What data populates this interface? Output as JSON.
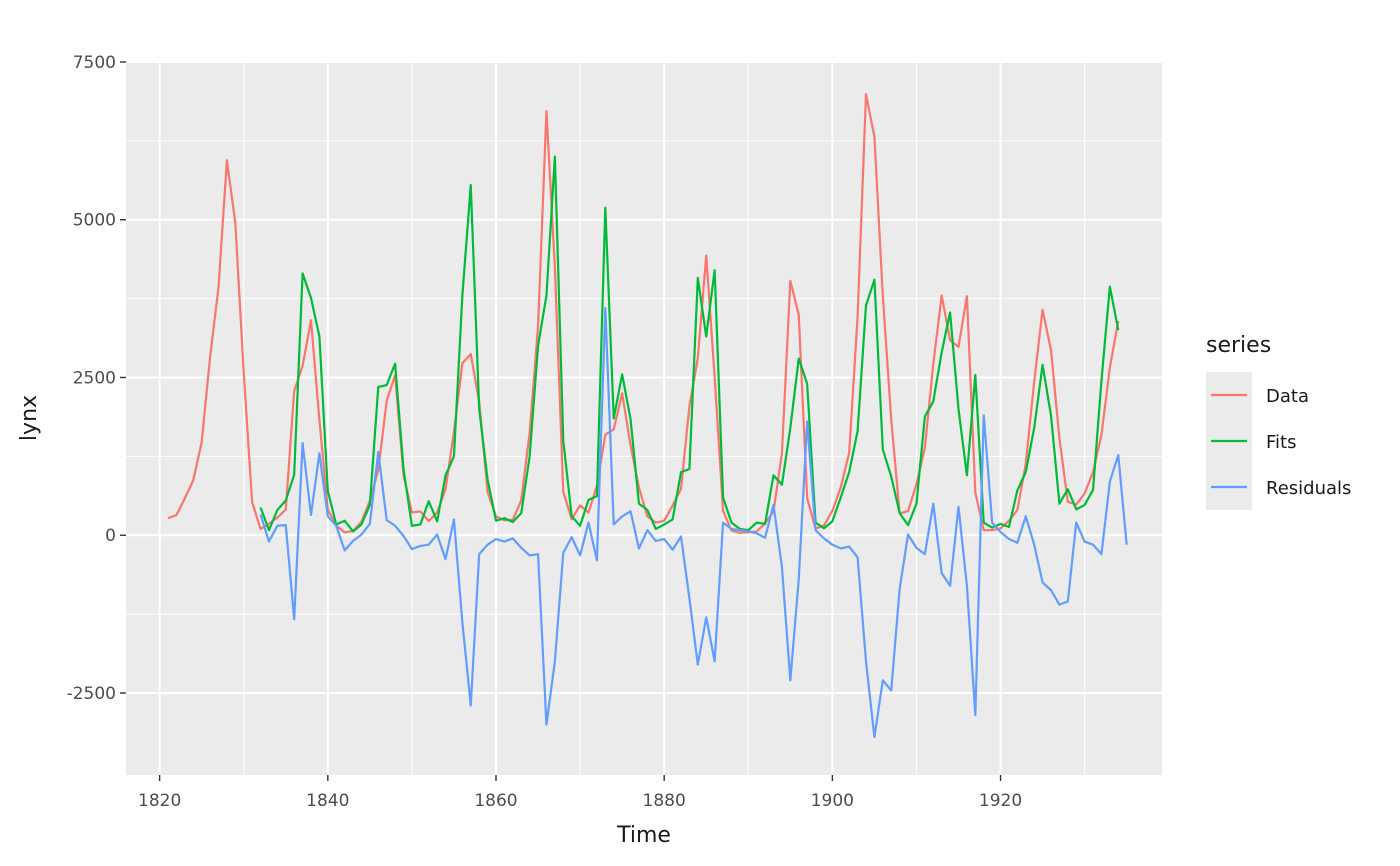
{
  "chart_data": {
    "type": "line",
    "title": "",
    "xlabel": "Time",
    "ylabel": "lynx",
    "xlim": [
      1816,
      1939.2
    ],
    "ylim": [
      -3800,
      7500
    ],
    "x_ticks": [
      1820,
      1840,
      1860,
      1880,
      1900,
      1920
    ],
    "y_ticks": [
      -2500,
      0,
      2500,
      5000,
      7500
    ],
    "grid": true,
    "legend": {
      "title": "series",
      "position": "right"
    },
    "colors": {
      "panel": "#ebebeb",
      "grid": "#ffffff",
      "Data": "#f8766d",
      "Fits": "#00ba38",
      "Residuals": "#619cff"
    },
    "series": [
      {
        "name": "Data",
        "start": 1821,
        "values": [
          269,
          321,
          585,
          871,
          1475,
          2821,
          3928,
          5943,
          4950,
          2577,
          523,
          98,
          184,
          279,
          409,
          2285,
          2685,
          3409,
          1824,
          409,
          151,
          45,
          68,
          213,
          546,
          1033,
          2129,
          2536,
          957,
          361,
          377,
          225,
          360,
          731,
          1638,
          2725,
          2871,
          2119,
          684,
          299,
          236,
          245,
          552,
          1623,
          3311,
          6721,
          4254,
          687,
          255,
          473,
          358,
          784,
          1594,
          1676,
          2251,
          1426,
          756,
          299,
          201,
          229,
          469,
          736,
          2042,
          2811,
          4431,
          2511,
          389,
          73,
          39,
          49,
          59,
          188,
          377,
          1292,
          4031,
          3495,
          587,
          105,
          153,
          387,
          758,
          1307,
          3465,
          6991,
          6313,
          3794,
          1836,
          345,
          382,
          808,
          1388,
          2713,
          3800,
          3091,
          2985,
          3790,
          674,
          81,
          80,
          108,
          229,
          399,
          1132,
          2432,
          3574,
          2935,
          1537,
          529,
          485,
          662,
          1000,
          1590,
          2657,
          3396
        ]
      },
      {
        "name": "Fits",
        "start": 1832,
        "values": [
          440,
          80,
          400,
          550,
          960,
          4150,
          3760,
          3150,
          700,
          170,
          230,
          60,
          170,
          480,
          2350,
          2380,
          2720,
          1050,
          150,
          170,
          540,
          220,
          950,
          1250,
          3800,
          5550,
          2000,
          880,
          230,
          270,
          210,
          350,
          1250,
          3000,
          3800,
          6000,
          1500,
          300,
          150,
          560,
          620,
          5190,
          1850,
          2550,
          1840,
          500,
          400,
          100,
          170,
          250,
          1000,
          1050,
          4080,
          3150,
          4200,
          600,
          200,
          100,
          80,
          200,
          180,
          950,
          800,
          1700,
          2800,
          2400,
          200,
          110,
          220,
          600,
          1000,
          1650,
          3640,
          4050,
          1360,
          930,
          350,
          160,
          500,
          1880,
          2120,
          2900,
          3530,
          2000,
          950,
          2540,
          200,
          120,
          180,
          130,
          710,
          1000,
          1700,
          2700,
          1900,
          500,
          730,
          410,
          480,
          720,
          2450,
          3940,
          3250
        ]
      },
      {
        "name": "Residuals",
        "start": 1832,
        "values": [
          330,
          -100,
          150,
          160,
          -1330,
          1460,
          320,
          1300,
          300,
          150,
          -240,
          -90,
          10,
          180,
          1320,
          240,
          150,
          -10,
          -220,
          -170,
          -150,
          10,
          -380,
          250,
          -1380,
          -2700,
          -300,
          -150,
          -60,
          -100,
          -50,
          -200,
          -320,
          -300,
          -3000,
          -2000,
          -280,
          -30,
          -320,
          200,
          -400,
          3600,
          170,
          300,
          380,
          -210,
          80,
          -90,
          -60,
          -230,
          -20,
          -1000,
          -2050,
          -1300,
          -2000,
          200,
          100,
          80,
          60,
          30,
          -40,
          480,
          -500,
          -2300,
          -700,
          1800,
          80,
          -50,
          -150,
          -210,
          -180,
          -350,
          -2000,
          -3200,
          -2300,
          -2460,
          -850,
          10,
          -200,
          -300,
          500,
          -600,
          -800,
          450,
          -800,
          -2850,
          1900,
          200,
          50,
          -60,
          -120,
          300,
          -150,
          -750,
          -870,
          -1100,
          -1050,
          200,
          -100,
          -150,
          -300,
          850,
          1270,
          -150
        ]
      }
    ]
  }
}
